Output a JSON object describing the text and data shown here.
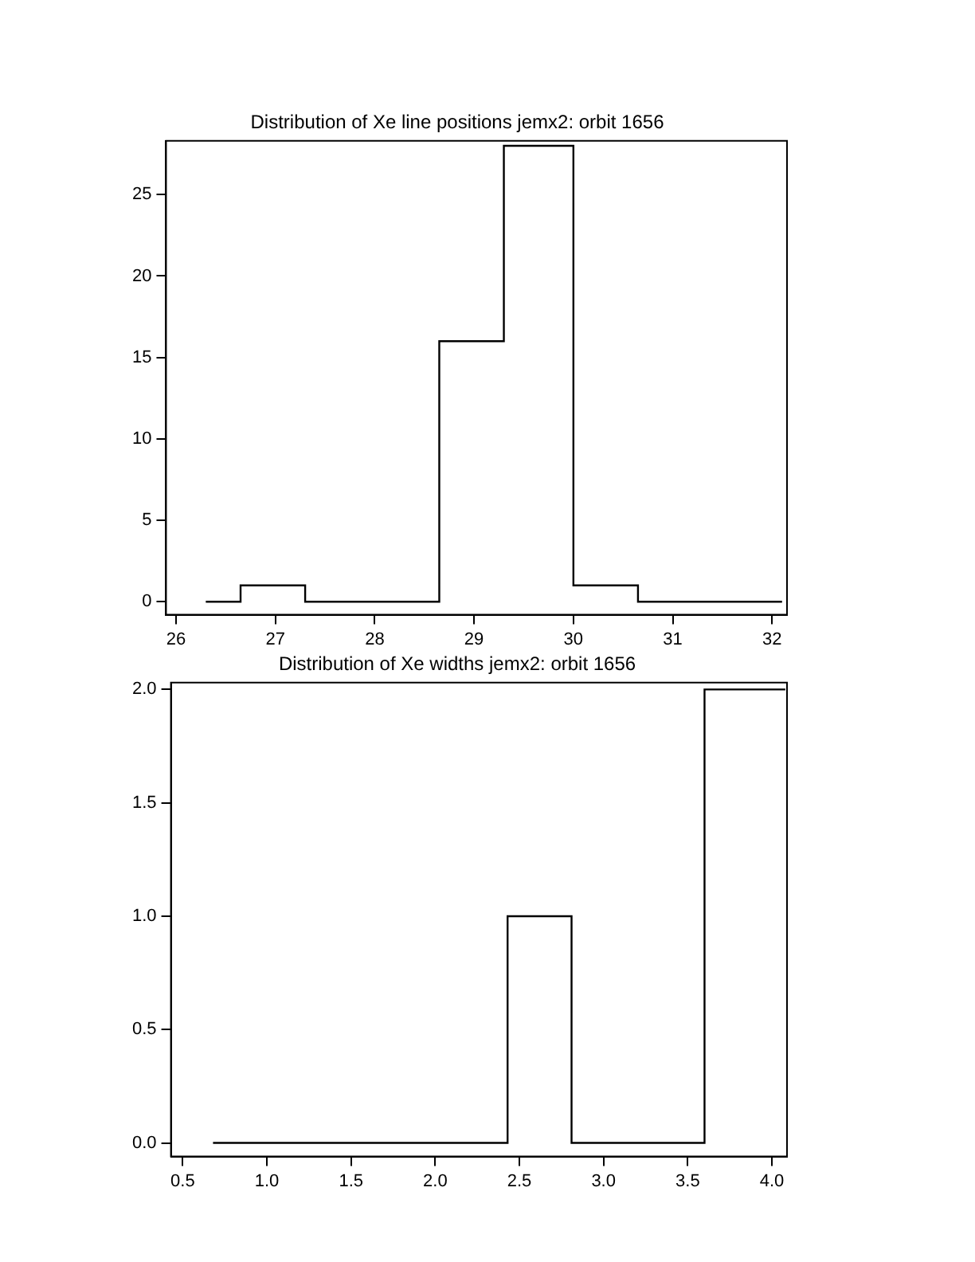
{
  "chart_data": [
    {
      "type": "histogram",
      "title": "Distribution of Xe line positions jemx2: orbit 1656",
      "bins": [
        26.3,
        26.65,
        27.3,
        28.65,
        29.3,
        30,
        30.65,
        32.1
      ],
      "values": [
        0,
        1,
        0,
        16,
        28,
        1,
        0
      ],
      "color": "#000000",
      "xlim": [
        25.9,
        32.15
      ],
      "xticks": [
        26,
        27,
        28,
        29,
        30,
        31,
        32
      ],
      "ylim": [
        -0.8,
        28.3
      ],
      "yticks": [
        0,
        5,
        10,
        15,
        20,
        25
      ],
      "grid": false
    },
    {
      "type": "histogram",
      "title": "Distribution of Xe widths jemx2: orbit 1656",
      "bins": [
        0.68,
        2.43,
        2.81,
        3.6,
        4.08
      ],
      "values": [
        0,
        1,
        0,
        2
      ],
      "color": "#000000",
      "xlim": [
        0.43,
        4.09
      ],
      "xticks": [
        {
          "value": 0.5,
          "label": "0.5"
        },
        {
          "value": 1,
          "label": "1.0"
        },
        {
          "value": 1.5,
          "label": "1.5"
        },
        {
          "value": 2,
          "label": "2.0"
        },
        {
          "value": 2.5,
          "label": "2.5"
        },
        {
          "value": 3,
          "label": "3.0"
        },
        {
          "value": 3.5,
          "label": "3.5"
        },
        {
          "value": 4,
          "label": "4.0"
        }
      ],
      "ylim": [
        -0.06,
        2.03
      ],
      "yticks": [
        {
          "value": 0,
          "label": "0.0"
        },
        {
          "value": 0.5,
          "label": "0.5"
        },
        {
          "value": 1,
          "label": "1.0"
        },
        {
          "value": 1.5,
          "label": "1.5"
        },
        {
          "value": 2,
          "label": "2.0"
        }
      ],
      "grid": false
    }
  ]
}
